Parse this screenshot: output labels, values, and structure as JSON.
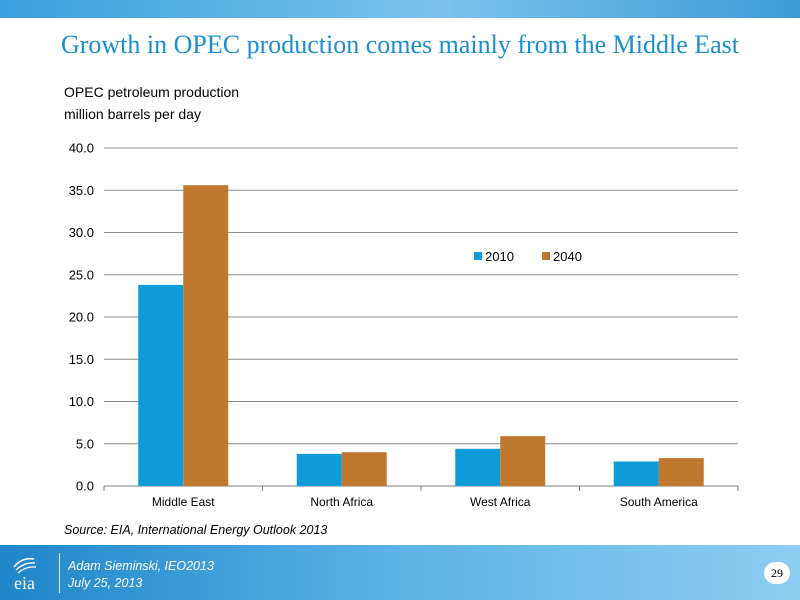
{
  "slide": {
    "title": "Growth in OPEC production comes mainly from the Middle East",
    "source": "Source:  EIA, International Energy Outlook 2013"
  },
  "footer": {
    "logo_text": "eia",
    "presenter": "Adam Sieminski, IEO2013",
    "date": "July 25, 2013",
    "page_number": "29"
  },
  "colors": {
    "series_2010": "#0e9bd8",
    "series_2040": "#c0782f",
    "title": "#1a8ed0"
  },
  "chart_data": {
    "type": "bar",
    "title_lines": [
      "OPEC petroleum production",
      "million barrels per day"
    ],
    "categories": [
      "Middle East",
      "North Africa",
      "West Africa",
      "South America"
    ],
    "series": [
      {
        "name": "2010",
        "values": [
          23.8,
          3.8,
          4.4,
          2.9
        ]
      },
      {
        "name": "2040",
        "values": [
          35.6,
          4.0,
          5.9,
          3.3
        ]
      }
    ],
    "ylim": [
      0,
      40
    ],
    "yticks": [
      "0.0",
      "5.0",
      "10.0",
      "15.0",
      "20.0",
      "25.0",
      "30.0",
      "35.0",
      "40.0"
    ],
    "ytick_values": [
      0,
      5,
      10,
      15,
      20,
      25,
      30,
      35,
      40
    ],
    "grid": true,
    "legend_position": "center-right"
  }
}
